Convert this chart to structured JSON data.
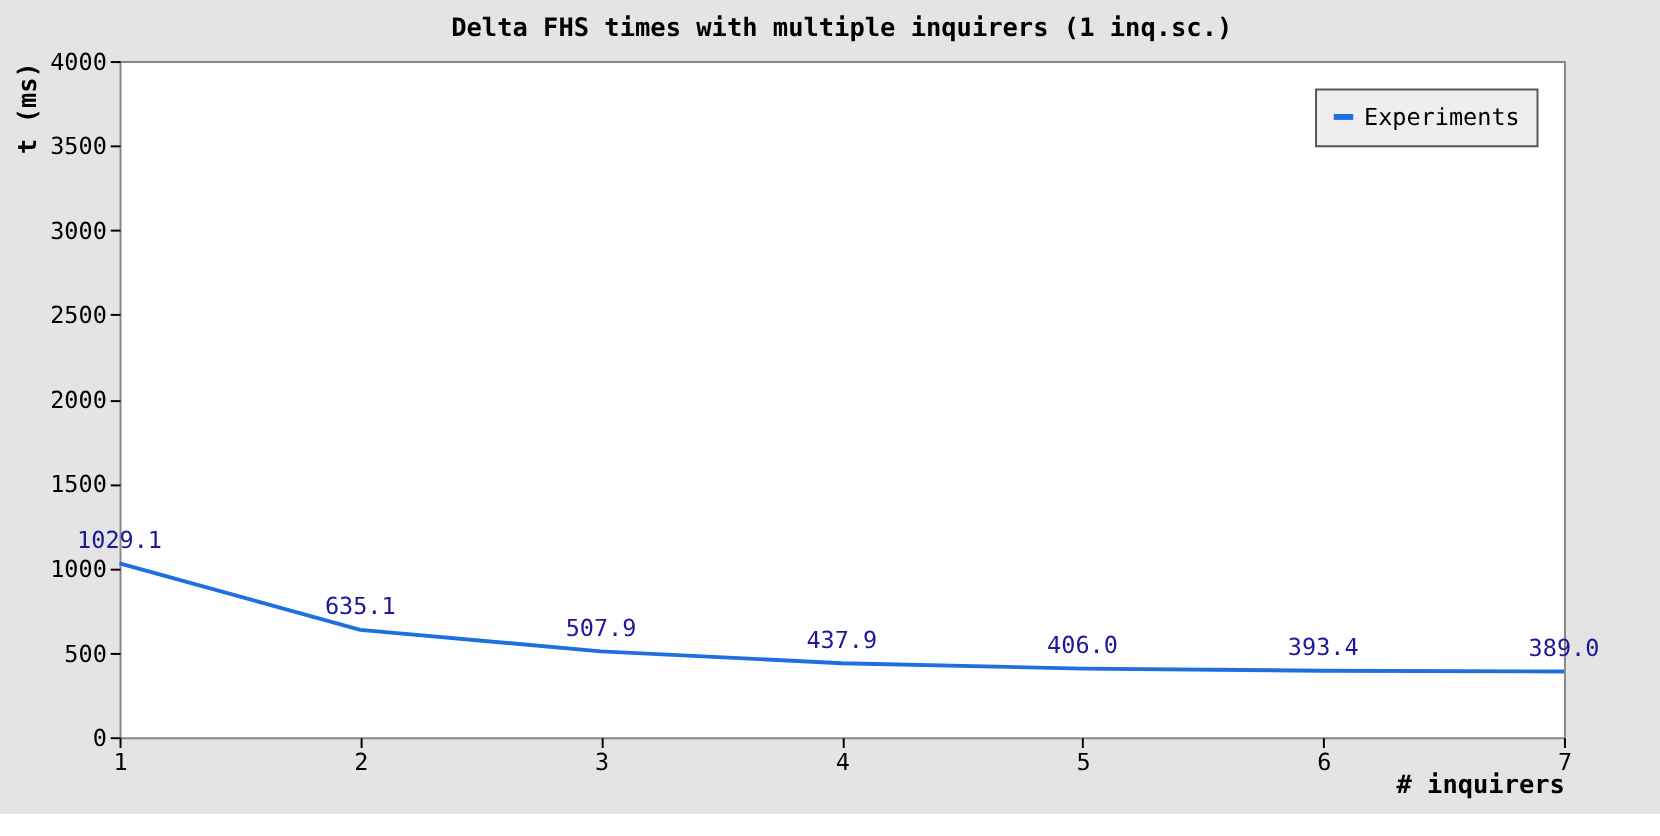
{
  "chart_data": {
    "type": "line",
    "title": "Delta FHS times with multiple inquirers (1 inq.sc.)",
    "xlabel": "# inquirers",
    "ylabel": "t (ms)",
    "x": [
      1,
      2,
      3,
      4,
      5,
      6,
      7
    ],
    "series": [
      {
        "name": "Experiments",
        "color": "#1f6fe0",
        "values": [
          1029.1,
          635.1,
          507.9,
          437.9,
          406.0,
          393.4,
          389.0
        ],
        "value_labels": [
          "1029.1",
          "635.1",
          "507.9",
          "437.9",
          "406.0",
          "393.4",
          "389.0"
        ]
      }
    ],
    "xlim": [
      1,
      7
    ],
    "xticks": [
      1,
      2,
      3,
      4,
      5,
      6,
      7
    ],
    "ylim": [
      0,
      4000
    ],
    "yticks": [
      0,
      500,
      1000,
      1500,
      2000,
      2500,
      3000,
      3500,
      4000
    ],
    "grid": false,
    "legend": "top right",
    "marker": "none",
    "line_style": "solid"
  }
}
